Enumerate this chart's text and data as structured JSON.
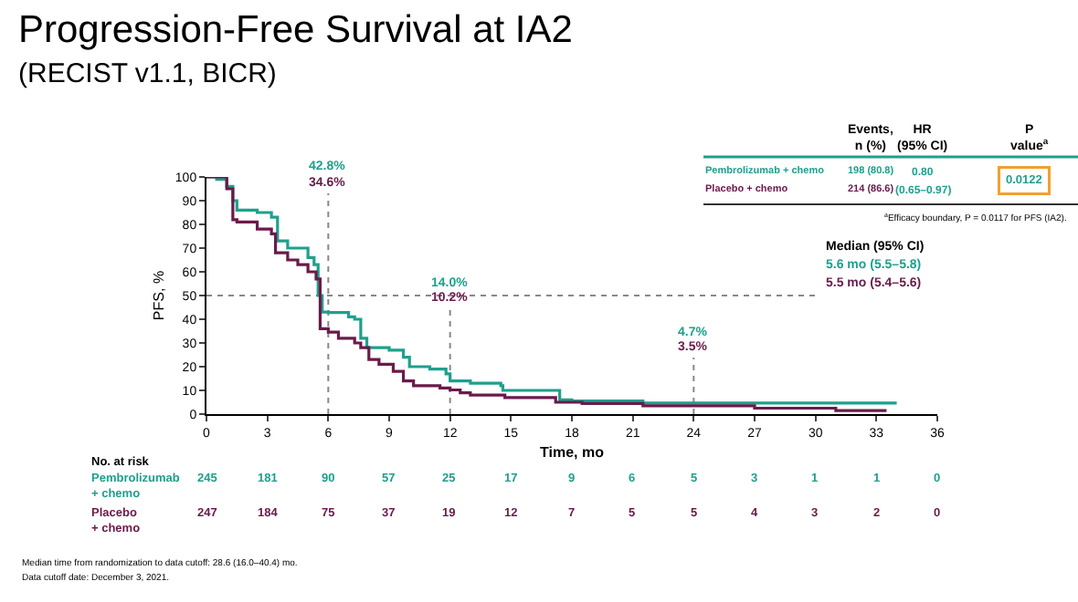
{
  "chart_data": {
    "type": "step",
    "title": "Progression-Free Survival at IA2",
    "subtitle": "(RECIST v1.1, BICR)",
    "xlabel": "Time, mo",
    "ylabel": "PFS, %",
    "series": [
      {
        "name": "Pembrolizumab + chemo",
        "color": "#1fa08c",
        "x": [
          0,
          0.5,
          1,
          1.3,
          1.5,
          2.5,
          3.2,
          3.5,
          4,
          5,
          5.3,
          5.5,
          5.7,
          6,
          7,
          7.3,
          7.6,
          7.9,
          9,
          9.7,
          10,
          11,
          11.8,
          12,
          13,
          14.5,
          14.6,
          17,
          17.4,
          18,
          21.5,
          24,
          34
        ],
        "values": [
          100,
          99,
          96,
          90,
          86,
          85,
          83,
          73,
          70,
          66,
          63,
          50,
          43,
          42.8,
          41,
          40,
          32,
          28,
          27,
          24,
          20,
          19,
          17,
          14,
          13,
          12,
          10,
          10,
          6,
          5.5,
          4.7,
          4.7,
          4.7
        ]
      },
      {
        "name": "Placebo + chemo",
        "color": "#6b1a4a",
        "x": [
          0,
          1,
          1.3,
          1.5,
          2.5,
          3.2,
          3.4,
          4,
          4.5,
          5,
          5.4,
          5.6,
          6,
          6.5,
          7.3,
          7.6,
          8,
          8.5,
          9.2,
          9.7,
          10.2,
          11.5,
          12,
          12.5,
          13,
          14.7,
          17,
          17.2,
          18.5,
          21.5,
          24,
          27,
          31,
          33.5
        ],
        "values": [
          100,
          95,
          82,
          81,
          78,
          76,
          68,
          65,
          63,
          60,
          57,
          36,
          34.6,
          32,
          30,
          28,
          23,
          21,
          18,
          14,
          12,
          11,
          10.2,
          9,
          8,
          7,
          7,
          5,
          4.5,
          3.5,
          3.5,
          2.5,
          1.5,
          1.5
        ]
      }
    ],
    "xlim": [
      0,
      36
    ],
    "xticks": [
      0,
      3,
      6,
      9,
      12,
      15,
      18,
      21,
      24,
      27,
      30,
      33,
      36
    ],
    "ylim": [
      0,
      100
    ],
    "yticks": [
      0,
      10,
      20,
      30,
      40,
      50,
      60,
      70,
      80,
      90,
      100
    ],
    "grid": false,
    "legend": false,
    "ref_lines": [
      {
        "axis": "x",
        "value": 6,
        "color": "#888888",
        "line_style": "dotted"
      },
      {
        "axis": "x",
        "value": 12,
        "color": "#888888",
        "line_style": "dotted"
      },
      {
        "axis": "x",
        "value": 24,
        "color": "#888888",
        "line_style": "dotted"
      },
      {
        "axis": "y",
        "value": 50,
        "color": "#888888",
        "line_style": "dotted"
      }
    ],
    "annotations": [
      "42.8%",
      "34.6%",
      "14.0%",
      "10.2%",
      "4.7%",
      "3.5%",
      "Median (95% CI)",
      "5.6 mo (5.5–5.8)",
      "5.5 mo (5.4–5.6)",
      "Events,\nn (%)",
      "HR\n(95% CI)",
      "P\nvalue$^{a}$",
      "198 (80.8)",
      "0.80",
      "(0.65–0.97)",
      "0.0122",
      "214 (86.6)",
      "$^{a}$Efficacy boundary, P = 0.0117 for PFS (IA2).",
      "No. at risk",
      "Pembrolizumab\n+ chemo",
      "Placebo\n+ chemo",
      "245",
      "181",
      "90",
      "57",
      "25",
      "17",
      "9",
      "6",
      "5",
      "3",
      "1",
      "1",
      "0",
      "247",
      "184",
      "75",
      "37",
      "19",
      "12",
      "7",
      "5",
      "5",
      "4",
      "3",
      "2",
      "0",
      "Median time from randomization to data cutoff: 28.6 (16.0–40.4) mo.",
      "Data cutoff date: December 3, 2021."
    ]
  }
}
